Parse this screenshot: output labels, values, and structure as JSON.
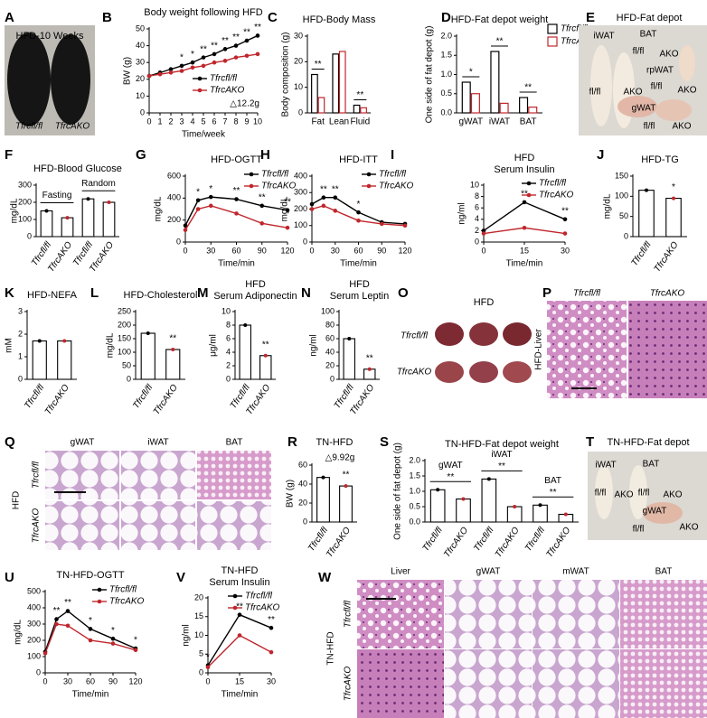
{
  "chart_data": [
    {
      "panel": "B",
      "type": "line",
      "title": "Body weight following HFD",
      "xlabel": "Time/week",
      "ylabel": "BW (g)",
      "x": [
        0,
        1,
        2,
        3,
        4,
        5,
        6,
        7,
        8,
        9,
        10
      ],
      "xlim": [
        0,
        10
      ],
      "xticks": [
        0,
        1,
        2,
        3,
        4,
        5,
        6,
        7,
        8,
        9,
        10
      ],
      "ylim": [
        0,
        50
      ],
      "yticks": [
        0,
        10,
        20,
        30,
        40,
        50
      ],
      "series": [
        {
          "name": "Tfrcfl/fl",
          "color": "#000000",
          "values": [
            22,
            24,
            26,
            28,
            30,
            33,
            35,
            38,
            40,
            43,
            46
          ]
        },
        {
          "name": "TfrcAKO",
          "color": "#c0262c",
          "values": [
            22,
            23,
            24,
            25,
            27,
            28,
            30,
            31,
            33,
            34,
            35
          ]
        }
      ],
      "significance": [
        null,
        null,
        null,
        "*",
        "*",
        "**",
        "**",
        "**",
        "**",
        "**",
        "**"
      ],
      "annotation": "△12.2g",
      "legend": "lower right"
    },
    {
      "panel": "C",
      "type": "bar",
      "title": "HFD-Body Mass",
      "ylabel": "Body composition (g)",
      "categories": [
        "Fat",
        "Lean",
        "Fluid"
      ],
      "ylim": [
        0,
        30
      ],
      "yticks": [
        0,
        10,
        20,
        30
      ],
      "series": [
        {
          "name": "Tfrcfl/fl",
          "color": "#000000",
          "values": [
            15,
            23,
            3
          ]
        },
        {
          "name": "TfrcAKO",
          "color": "#c0262c",
          "values": [
            6,
            24,
            2
          ]
        }
      ],
      "significance": [
        "**",
        null,
        "**"
      ]
    },
    {
      "panel": "D",
      "type": "bar",
      "title": "HFD-Fat depot weight",
      "ylabel": "One side of fat depot (g)",
      "categories": [
        "gWAT",
        "iWAT",
        "BAT"
      ],
      "ylim": [
        0,
        2
      ],
      "yticks": [
        {
          "value": 0,
          "label": "0.0"
        },
        {
          "value": 0.5,
          "label": "0.5"
        },
        {
          "value": 1,
          "label": "1.0"
        },
        {
          "value": 1.5,
          "label": "1.5"
        },
        {
          "value": 2,
          "label": "2.0"
        }
      ],
      "series": [
        {
          "name": "Tfrcfl/fl",
          "color": "#000000",
          "values": [
            0.8,
            1.6,
            0.4
          ]
        },
        {
          "name": "TfrcAKO",
          "color": "#c0262c",
          "values": [
            0.5,
            0.25,
            0.15
          ]
        }
      ],
      "significance": [
        "*",
        "**",
        "**"
      ],
      "legend": "upper right"
    },
    {
      "panel": "F",
      "type": "bar",
      "title": "HFD-Blood Glucose",
      "ylabel": "mg/dL",
      "categories": [
        "Tfrcfl/fl",
        "TfrcAKO",
        "Tfrcfl/fl",
        "TfrcAKO"
      ],
      "groups": [
        "Fasting",
        "Random"
      ],
      "values": [
        150,
        110,
        220,
        200
      ],
      "colors": [
        "#000000",
        "#c0262c",
        "#000000",
        "#c0262c"
      ],
      "ylim": [
        0,
        300
      ],
      "yticks": [
        0,
        100,
        200,
        300
      ]
    },
    {
      "panel": "G",
      "type": "line",
      "title": "HFD-OGTT",
      "xlabel": "Time/min",
      "ylabel": "mg/dL",
      "x": [
        0,
        15,
        30,
        60,
        90,
        120
      ],
      "xlim": [
        0,
        120
      ],
      "xticks": [
        0,
        30,
        60,
        90,
        120
      ],
      "ylim": [
        0,
        600
      ],
      "yticks": [
        0,
        200,
        400,
        600
      ],
      "series": [
        {
          "name": "Tfrcfl/fl",
          "color": "#000000",
          "values": [
            150,
            380,
            410,
            390,
            330,
            290
          ]
        },
        {
          "name": "TfrcAKO",
          "color": "#c0262c",
          "values": [
            110,
            300,
            330,
            260,
            170,
            130
          ]
        }
      ],
      "significance": [
        null,
        "*",
        "*",
        "**",
        "**",
        "**"
      ],
      "legend": "upper right"
    },
    {
      "panel": "H",
      "type": "line",
      "title": "HFD-ITT",
      "xlabel": "Time/min",
      "ylabel": "mg/dL",
      "x": [
        0,
        15,
        30,
        60,
        90,
        120
      ],
      "xlim": [
        0,
        120
      ],
      "xticks": [
        0,
        30,
        60,
        90,
        120
      ],
      "ylim": [
        0,
        400
      ],
      "yticks": [
        0,
        100,
        200,
        300,
        400
      ],
      "series": [
        {
          "name": "Tfrcfl/fl",
          "color": "#000000",
          "values": [
            230,
            270,
            270,
            180,
            120,
            110
          ]
        },
        {
          "name": "TfrcAKO",
          "color": "#c0262c",
          "values": [
            200,
            220,
            190,
            130,
            110,
            100
          ]
        }
      ],
      "significance": [
        null,
        "**",
        "**",
        "*",
        null,
        null
      ],
      "legend": "upper right"
    },
    {
      "panel": "I",
      "type": "line",
      "title": "HFD",
      "subtitle": "Serum Insulin",
      "xlabel": "Time/min",
      "ylabel": "ng/ml",
      "x": [
        0,
        15,
        30
      ],
      "xlim": [
        0,
        30
      ],
      "xticks": [
        0,
        15,
        30
      ],
      "ylim": [
        0,
        10
      ],
      "yticks": [
        0,
        2,
        4,
        6,
        8,
        10
      ],
      "series": [
        {
          "name": "Tfrcfl/fl",
          "color": "#000000",
          "values": [
            2,
            7,
            4
          ]
        },
        {
          "name": "TfrcAKO",
          "color": "#c0262c",
          "values": [
            1.5,
            2.5,
            1.5
          ]
        }
      ],
      "significance": [
        null,
        "**",
        "**"
      ],
      "legend": "upper right"
    },
    {
      "panel": "J",
      "type": "bar",
      "title": "HFD-TG",
      "ylabel": "mg/dL",
      "categories": [
        "Tfrcfl/fl",
        "TfrcAKO"
      ],
      "values": [
        115,
        95
      ],
      "colors": [
        "#000000",
        "#c0262c"
      ],
      "ylim": [
        0,
        150
      ],
      "yticks": [
        0,
        50,
        100,
        150
      ],
      "significance": [
        null,
        "*"
      ]
    },
    {
      "panel": "K",
      "type": "bar",
      "title": "HFD-NEFA",
      "ylabel": "mM",
      "categories": [
        "Tfrcfl/fl",
        "TfrcAKO"
      ],
      "values": [
        1.7,
        1.7
      ],
      "colors": [
        "#000000",
        "#c0262c"
      ],
      "ylim": [
        0,
        3
      ],
      "yticks": [
        0,
        1,
        2,
        3
      ]
    },
    {
      "panel": "L",
      "type": "bar",
      "title": "HFD-Cholesterol",
      "ylabel": "mg/dL",
      "categories": [
        "Tfrcfl/fl",
        "TfrcAKO"
      ],
      "values": [
        170,
        110
      ],
      "colors": [
        "#000000",
        "#c0262c"
      ],
      "ylim": [
        0,
        250
      ],
      "yticks": [
        0,
        50,
        100,
        150,
        200,
        250
      ],
      "significance": [
        null,
        "**"
      ]
    },
    {
      "panel": "M",
      "type": "bar",
      "title": "HFD",
      "subtitle": "Serum Adiponectin",
      "ylabel": "μg/ml",
      "categories": [
        "Tfrcfl/fl",
        "TfrcAKO"
      ],
      "values": [
        8,
        3.5
      ],
      "colors": [
        "#000000",
        "#c0262c"
      ],
      "ylim": [
        0,
        10
      ],
      "yticks": [
        0,
        2,
        4,
        6,
        8,
        10
      ],
      "significance": [
        null,
        "**"
      ]
    },
    {
      "panel": "N",
      "type": "bar",
      "title": "HFD",
      "subtitle": "Serum Leptin",
      "ylabel": "ng/ml",
      "categories": [
        "Tfrcfl/fl",
        "TfrcAKO"
      ],
      "values": [
        60,
        15
      ],
      "colors": [
        "#000000",
        "#c0262c"
      ],
      "ylim": [
        0,
        100
      ],
      "yticks": [
        0,
        20,
        40,
        60,
        80,
        100
      ],
      "significance": [
        null,
        "**"
      ]
    },
    {
      "panel": "R",
      "type": "bar",
      "title": "TN-HFD",
      "ylabel": "BW (g)",
      "categories": [
        "Tfrcfl/fl",
        "TfrcAKO"
      ],
      "values": [
        47,
        38
      ],
      "colors": [
        "#000000",
        "#c0262c"
      ],
      "ylim": [
        0,
        60
      ],
      "yticks": [
        0,
        20,
        40,
        60
      ],
      "significance": [
        null,
        "**"
      ],
      "annotation": "△9.92g"
    },
    {
      "panel": "S",
      "type": "bar",
      "title": "TN-HFD-Fat depot weight",
      "ylabel": "One side of fat depot (g)",
      "categories": [
        "Tfrcfl/fl",
        "TfrcAKO",
        "Tfrcfl/fl",
        "TfrcAKO",
        "Tfrcfl/fl",
        "TfrcAKO"
      ],
      "groups": [
        "gWAT",
        "iWAT",
        "BAT"
      ],
      "values": [
        1.05,
        0.75,
        1.4,
        0.5,
        0.55,
        0.25
      ],
      "colors": [
        "#000000",
        "#c0262c",
        "#000000",
        "#c0262c",
        "#000000",
        "#c0262c"
      ],
      "ylim": [
        0,
        2
      ],
      "yticks": [
        {
          "value": 0,
          "label": "0.0"
        },
        {
          "value": 0.5,
          "label": "0.5"
        },
        {
          "value": 1,
          "label": "1.0"
        },
        {
          "value": 1.5,
          "label": "1.5"
        },
        {
          "value": 2,
          "label": "2.0"
        }
      ],
      "significance": [
        "**",
        "**",
        "**"
      ]
    },
    {
      "panel": "U",
      "type": "line",
      "title": "TN-HFD-OGTT",
      "xlabel": "Time/min",
      "ylabel": "mg/dL",
      "x": [
        0,
        15,
        30,
        60,
        90,
        120
      ],
      "xlim": [
        0,
        120
      ],
      "xticks": [
        0,
        30,
        60,
        90,
        120
      ],
      "ylim": [
        0,
        500
      ],
      "yticks": [
        0,
        100,
        200,
        300,
        400,
        500
      ],
      "series": [
        {
          "name": "Tfrcfl/fl",
          "color": "#000000",
          "values": [
            130,
            330,
            380,
            270,
            210,
            150
          ]
        },
        {
          "name": "TfrcAKO",
          "color": "#c0262c",
          "values": [
            120,
            300,
            290,
            200,
            180,
            140
          ]
        }
      ],
      "significance": [
        null,
        "**",
        "**",
        "*",
        "*",
        "*"
      ],
      "legend": "upper right"
    },
    {
      "panel": "V",
      "type": "line",
      "title": "TN-HFD",
      "subtitle": "Serum Insulin",
      "xlabel": "Time/min",
      "ylabel": "ng/ml",
      "x": [
        0,
        15,
        30
      ],
      "xlim": [
        0,
        30
      ],
      "xticks": [
        0,
        15,
        30
      ],
      "ylim": [
        0,
        20
      ],
      "yticks": [
        0,
        5,
        10,
        15,
        20
      ],
      "series": [
        {
          "name": "Tfrcfl/fl",
          "color": "#000000",
          "values": [
            2,
            15.5,
            12
          ]
        },
        {
          "name": "TfrcAKO",
          "color": "#c0262c",
          "values": [
            1.5,
            10,
            5.5
          ]
        }
      ],
      "significance": [
        "*",
        "**",
        "**"
      ],
      "legend": "upper right"
    }
  ],
  "images": [
    {
      "panel": "A",
      "title": "HFD-10 Weeks",
      "texts": [
        "Tfrcfl/fl",
        "TfrcAKO"
      ]
    },
    {
      "panel": "E",
      "title": "HFD-Fat depot",
      "texts": [
        "iWAT",
        "BAT",
        "fl/fl",
        "AKO",
        "rpWAT",
        "fl/fl",
        "AKO",
        "fl/fl",
        "AKO",
        "gWAT",
        "fl/fl",
        "AKO"
      ]
    },
    {
      "panel": "O",
      "title": "HFD",
      "rows": [
        "Tfrcfl/fl",
        "TfrcAKO"
      ]
    },
    {
      "panel": "P",
      "columns": [
        "Tfrcfl/fl",
        "TfrcAKO"
      ],
      "side": "HFD-Liver"
    },
    {
      "panel": "Q",
      "columns": [
        "gWAT",
        "iWAT",
        "BAT"
      ],
      "rows": [
        "Tfrcfl/fl",
        "TfrcAKO"
      ],
      "side": "HFD"
    },
    {
      "panel": "T",
      "title": "TN-HFD-Fat depot",
      "texts": [
        "iWAT",
        "BAT",
        "fl/fl",
        "AKO",
        "fl/fl",
        "AKO",
        "gWAT",
        "fl/fl",
        "AKO"
      ]
    },
    {
      "panel": "W",
      "columns": [
        "Liver",
        "gWAT",
        "mWAT",
        "BAT"
      ],
      "rows": [
        "Tfrcfl/fl",
        "TfrcAKO"
      ],
      "side": "TN-HFD"
    }
  ]
}
